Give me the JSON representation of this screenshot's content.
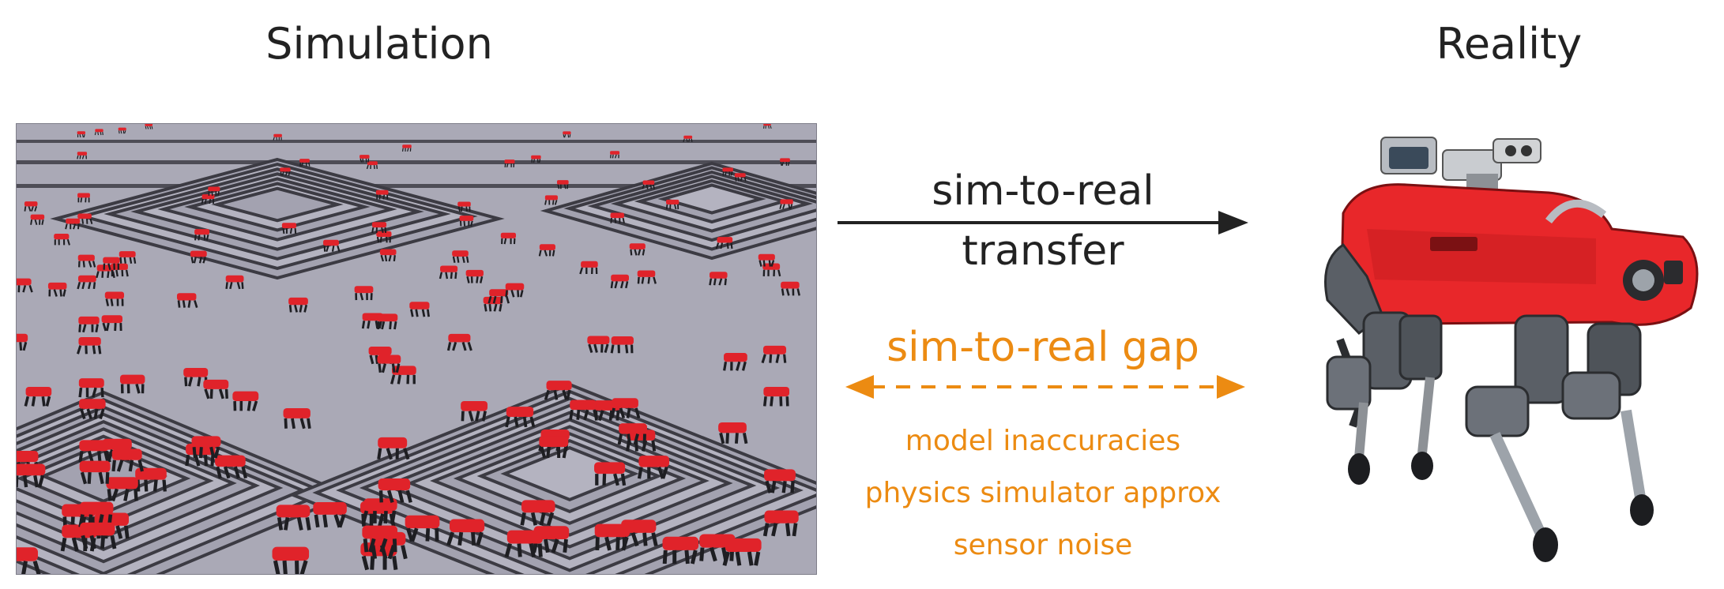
{
  "titles": {
    "simulation": "Simulation",
    "reality": "Reality"
  },
  "transfer": {
    "line1": "sim-to-real",
    "line2": "transfer"
  },
  "gap": {
    "title": "sim-to-real gap",
    "items": [
      "model inaccuracies",
      "physics simulator approx",
      "sensor noise"
    ]
  },
  "colors": {
    "text": "#222222",
    "gap_accent": "#ec8b12",
    "robot_red": "#e8272a",
    "terrain": "#a9a8b5"
  }
}
